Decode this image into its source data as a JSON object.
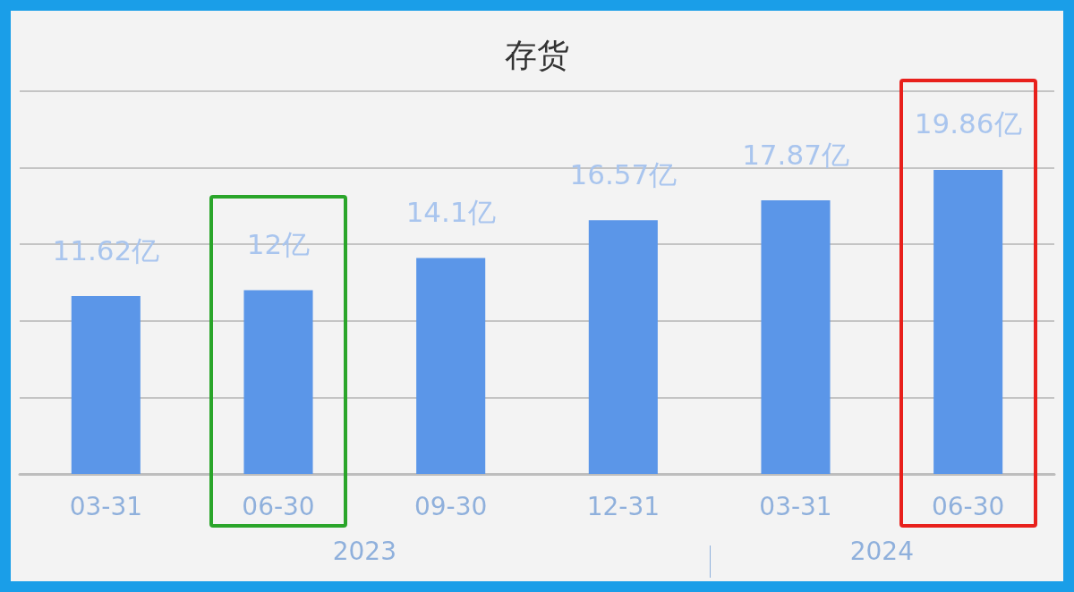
{
  "chart_data": {
    "type": "bar",
    "title": "存货",
    "categories": [
      "03-31",
      "06-30",
      "09-30",
      "12-31",
      "03-31",
      "06-30"
    ],
    "values": [
      11.62,
      12,
      14.1,
      16.57,
      17.87,
      19.86
    ],
    "value_labels": [
      "11.62亿",
      "12亿",
      "14.1亿",
      "16.57亿",
      "17.87亿",
      "19.86亿"
    ],
    "color": "#5b96e8",
    "ylim": [
      0,
      25
    ],
    "yticks": [
      {
        "value": 0,
        "label": null
      },
      {
        "value": 5,
        "label": null
      },
      {
        "value": 10,
        "label": null
      },
      {
        "value": 15,
        "label": null
      },
      {
        "value": 20,
        "label": null
      },
      {
        "value": 25,
        "label": null
      }
    ],
    "grid": "y",
    "tick_labels": "x",
    "annotations": [
      "2023",
      "2024"
    ]
  }
}
